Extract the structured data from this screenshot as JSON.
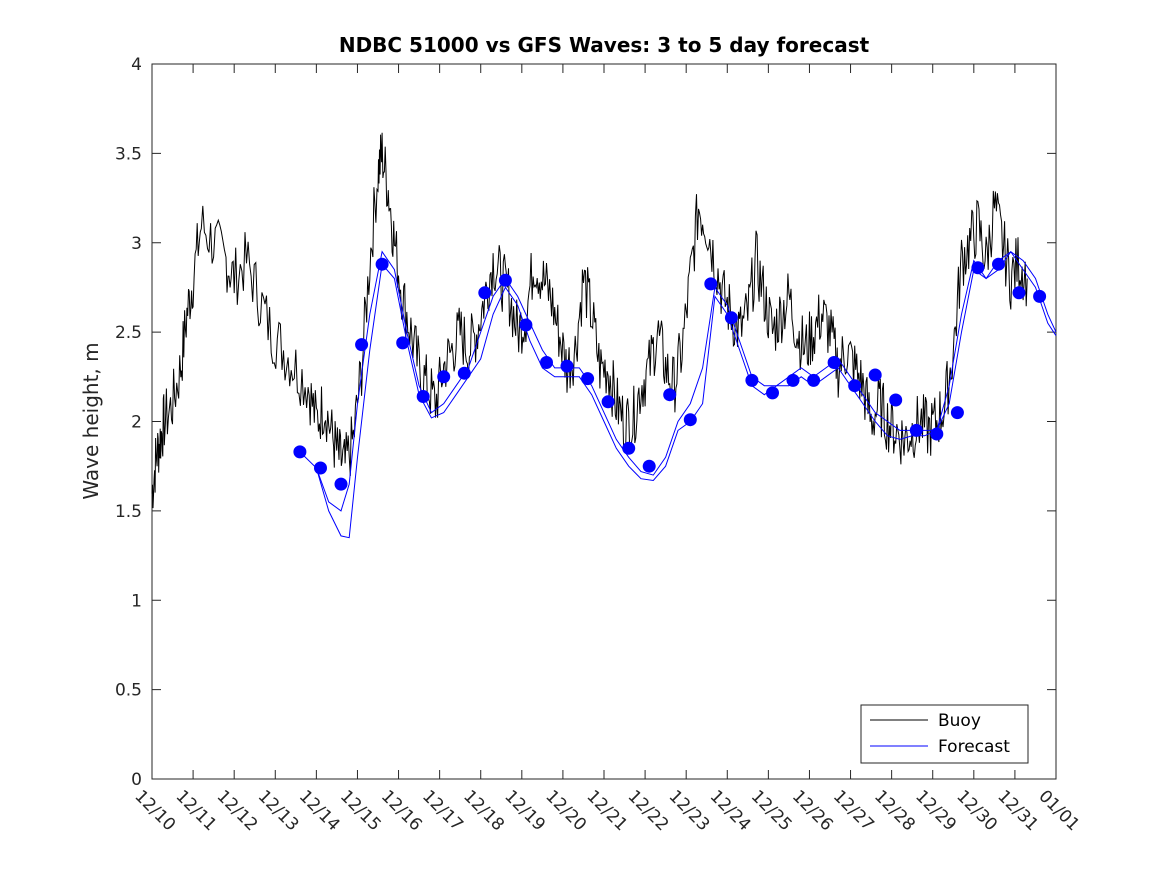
{
  "chart_data": {
    "type": "line",
    "title": "NDBC 51000 vs GFS Waves: 3 to 5 day forecast",
    "xlabel": "",
    "ylabel": "Wave height, m",
    "xlim": [
      "12/10",
      "01/01"
    ],
    "ylim": [
      0,
      4
    ],
    "x_tick_labels": [
      "12/10",
      "12/11",
      "12/12",
      "12/13",
      "12/14",
      "12/15",
      "12/16",
      "12/17",
      "12/18",
      "12/19",
      "12/20",
      "12/21",
      "12/22",
      "12/23",
      "12/24",
      "12/25",
      "12/26",
      "12/27",
      "12/28",
      "12/29",
      "12/30",
      "12/31",
      "01/01"
    ],
    "y_ticks": [
      0,
      0.5,
      1,
      1.5,
      2,
      2.5,
      3,
      3.5,
      4
    ],
    "y_tick_labels": [
      "0",
      "0.5",
      "1",
      "1.5",
      "2",
      "2.5",
      "3",
      "3.5",
      "4"
    ],
    "x_unit": "days after 12/10",
    "grid": false,
    "legend": {
      "position": "bottom-right",
      "entries": [
        "Buoy",
        "Forecast"
      ]
    },
    "colors": {
      "buoy": "#000000",
      "forecast": "#0000ff"
    },
    "series": [
      {
        "name": "Buoy",
        "style": "line",
        "x": [
          0.0,
          0.1,
          0.2,
          0.3,
          0.5,
          0.7,
          0.85,
          1.0,
          1.2,
          1.5,
          1.8,
          2.0,
          2.3,
          2.6,
          2.9,
          3.2,
          3.5,
          3.8,
          4.0,
          4.2,
          4.4,
          4.55,
          4.7,
          4.9,
          5.1,
          5.3,
          5.5,
          5.6,
          5.75,
          5.9,
          6.1,
          6.3,
          6.5,
          6.7,
          6.9,
          7.1,
          7.3,
          7.5,
          7.7,
          7.9,
          8.1,
          8.3,
          8.5,
          8.7,
          8.9,
          9.1,
          9.3,
          9.5,
          9.7,
          9.9,
          10.1,
          10.3,
          10.5,
          10.7,
          10.9,
          11.1,
          11.3,
          11.5,
          11.7,
          11.9,
          12.1,
          12.3,
          12.5,
          12.7,
          12.9,
          13.1,
          13.3,
          13.5,
          13.7,
          13.9,
          14.1,
          14.3,
          14.5,
          14.7,
          14.9,
          15.1,
          15.3,
          15.5,
          15.7,
          15.9,
          16.1,
          16.3,
          16.5,
          16.7,
          16.9,
          17.1,
          17.3,
          17.5,
          17.7,
          17.9,
          18.1,
          18.3,
          18.5,
          18.7,
          18.9,
          19.1,
          19.3,
          19.5,
          19.7,
          19.9,
          20.1,
          20.3,
          20.5,
          20.7,
          20.9,
          21.1,
          21.3
        ],
        "y": [
          1.6,
          1.8,
          1.9,
          2.0,
          2.1,
          2.3,
          2.6,
          2.8,
          3.1,
          3.0,
          2.9,
          2.8,
          2.9,
          2.7,
          2.5,
          2.4,
          2.3,
          2.2,
          2.0,
          2.1,
          1.9,
          1.8,
          1.75,
          1.9,
          2.3,
          2.9,
          3.4,
          3.5,
          3.3,
          3.0,
          2.7,
          2.5,
          2.3,
          2.2,
          2.1,
          2.3,
          2.4,
          2.5,
          2.4,
          2.5,
          2.7,
          2.9,
          2.8,
          2.7,
          2.5,
          2.6,
          2.9,
          2.8,
          2.7,
          2.5,
          2.3,
          2.4,
          2.8,
          2.6,
          2.3,
          2.3,
          2.1,
          2.0,
          2.0,
          2.2,
          2.3,
          2.5,
          2.3,
          2.2,
          2.4,
          2.8,
          3.2,
          3.1,
          2.9,
          2.7,
          2.6,
          2.5,
          2.6,
          2.9,
          2.7,
          2.5,
          2.6,
          2.7,
          2.5,
          2.4,
          2.5,
          2.6,
          2.5,
          2.3,
          2.4,
          2.3,
          2.2,
          2.0,
          2.1,
          2.0,
          1.95,
          1.9,
          1.95,
          2.0,
          1.95,
          2.0,
          2.1,
          2.4,
          2.9,
          3.0,
          3.1,
          2.9,
          3.2,
          3.0,
          2.8,
          2.9,
          2.8
        ]
      },
      {
        "name": "Forecast",
        "style": "markers",
        "x": [
          3.6,
          4.1,
          4.6,
          5.1,
          5.6,
          6.1,
          6.6,
          7.1,
          7.6,
          8.1,
          8.6,
          9.1,
          9.6,
          10.1,
          10.6,
          11.1,
          11.6,
          12.1,
          12.6,
          13.1,
          13.6,
          14.1,
          14.6,
          15.1,
          15.6,
          16.1,
          16.6,
          17.1,
          17.6,
          18.1,
          18.6,
          19.1,
          19.6,
          20.1,
          20.6,
          21.1,
          21.6
        ],
        "y": [
          1.83,
          1.74,
          1.65,
          2.43,
          2.88,
          2.44,
          2.14,
          2.25,
          2.27,
          2.72,
          2.79,
          2.54,
          2.33,
          2.31,
          2.24,
          2.11,
          1.85,
          1.75,
          2.15,
          2.01,
          2.77,
          2.58,
          2.23,
          2.16,
          2.23,
          2.23,
          2.33,
          2.2,
          2.26,
          2.12,
          1.95,
          1.93,
          2.05,
          2.86,
          2.88,
          2.72,
          2.7
        ]
      },
      {
        "name": "",
        "style": "line",
        "x": [
          3.6,
          4.0,
          4.3,
          4.6,
          4.8,
          5.0,
          5.3,
          5.6,
          5.9,
          6.2,
          6.5,
          6.8,
          7.1,
          7.4,
          7.7,
          8.0,
          8.3,
          8.6,
          8.9,
          9.2,
          9.5,
          9.8,
          10.1,
          10.4,
          10.7,
          11.0,
          11.3,
          11.6,
          11.9,
          12.2,
          12.5,
          12.8,
          13.1,
          13.4,
          13.7,
          14.0,
          14.3,
          14.6,
          14.9,
          15.2,
          15.5,
          15.8,
          16.1,
          16.4,
          16.7,
          17.0,
          17.3,
          17.6,
          17.9,
          18.2,
          18.5,
          18.8,
          19.1,
          19.4,
          19.7,
          20.0,
          20.3,
          20.6,
          20.9,
          21.2,
          21.5,
          21.8,
          22.0
        ],
        "y": [
          1.83,
          1.74,
          1.55,
          1.5,
          1.65,
          2.1,
          2.6,
          2.95,
          2.85,
          2.5,
          2.2,
          2.05,
          2.1,
          2.2,
          2.3,
          2.5,
          2.7,
          2.8,
          2.7,
          2.55,
          2.4,
          2.3,
          2.3,
          2.3,
          2.2,
          2.05,
          1.9,
          1.8,
          1.72,
          1.7,
          1.8,
          2.0,
          2.1,
          2.3,
          2.75,
          2.65,
          2.45,
          2.25,
          2.2,
          2.2,
          2.25,
          2.3,
          2.25,
          2.3,
          2.35,
          2.25,
          2.15,
          2.05,
          2.0,
          1.95,
          1.95,
          1.95,
          1.95,
          2.1,
          2.5,
          2.85,
          2.8,
          2.9,
          2.95,
          2.9,
          2.8,
          2.6,
          2.5
        ]
      },
      {
        "name": "",
        "style": "line",
        "x": [
          4.0,
          4.3,
          4.6,
          4.8,
          5.0,
          5.3,
          5.6,
          5.9,
          6.2,
          6.5,
          6.8,
          7.1,
          7.4,
          7.7,
          8.0,
          8.3,
          8.6,
          8.9,
          9.2,
          9.5,
          9.8,
          10.1,
          10.4,
          10.7,
          11.0,
          11.3,
          11.6,
          11.9,
          12.2,
          12.5,
          12.8,
          13.1,
          13.4,
          13.7,
          14.0,
          14.3,
          14.6,
          14.9,
          15.2,
          15.5,
          15.8,
          16.1,
          16.4,
          16.7,
          17.0,
          17.3,
          17.6,
          17.9,
          18.2,
          18.5,
          18.8,
          19.1,
          19.4,
          19.7,
          20.0,
          20.3,
          20.6,
          20.9,
          21.2,
          21.5,
          21.8,
          22.0
        ],
        "y": [
          1.74,
          1.5,
          1.36,
          1.35,
          1.8,
          2.4,
          2.88,
          2.8,
          2.45,
          2.15,
          2.02,
          2.05,
          2.15,
          2.25,
          2.35,
          2.6,
          2.75,
          2.65,
          2.45,
          2.3,
          2.25,
          2.25,
          2.25,
          2.15,
          2.0,
          1.85,
          1.75,
          1.68,
          1.67,
          1.75,
          1.95,
          2.0,
          2.1,
          2.7,
          2.6,
          2.4,
          2.2,
          2.15,
          2.2,
          2.2,
          2.25,
          2.2,
          2.25,
          2.3,
          2.2,
          2.1,
          2.0,
          1.92,
          1.9,
          1.92,
          1.92,
          1.95,
          2.2,
          2.6,
          2.9,
          2.8,
          2.85,
          2.95,
          2.85,
          2.75,
          2.55,
          2.48
        ]
      }
    ]
  }
}
